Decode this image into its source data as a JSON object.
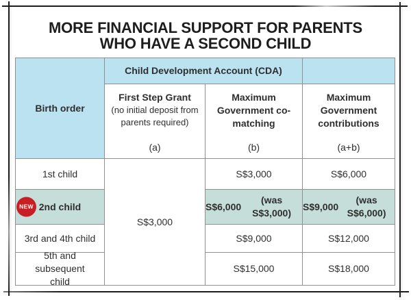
{
  "title": {
    "line1": "MORE FINANCIAL SUPPORT FOR PARENTS",
    "line2": "WHO HAVE A SECOND CHILD"
  },
  "table": {
    "corner_header": "Birth order",
    "group_header": "Child Development Account (CDA)",
    "col_headers": [
      {
        "title": "First Step Grant",
        "subtitle": "(no initial deposit from parents required)",
        "code": "(a)"
      },
      {
        "title": "Maximum Government co-matching",
        "code": "(b)"
      },
      {
        "title": "Maximum Government contributions",
        "code": "(a+b)"
      }
    ],
    "first_step_grant_value": "S$3,000",
    "rows": [
      {
        "label": "1st child",
        "co_matching": "S$3,000",
        "contributions": "S$6,000"
      },
      {
        "label": "2nd child",
        "badge": "NEW",
        "co_matching": "S$6,000",
        "co_matching_was": "(was S$3,000)",
        "contributions": "S$9,000",
        "contributions_was": "(was S$6,000)"
      },
      {
        "label": "3rd and 4th child",
        "co_matching": "S$9,000",
        "contributions": "S$12,000"
      },
      {
        "label": "5th and subsequent child",
        "co_matching": "S$15,000",
        "contributions": "S$18,000"
      }
    ]
  },
  "colors": {
    "header-blue": "#bae2f1",
    "highlight-teal": "#c5ded9",
    "badge-red": "#c71f24",
    "line-gray": "#8f8f8f",
    "frame-black": "#232323",
    "ink": "#2e2e2e"
  }
}
